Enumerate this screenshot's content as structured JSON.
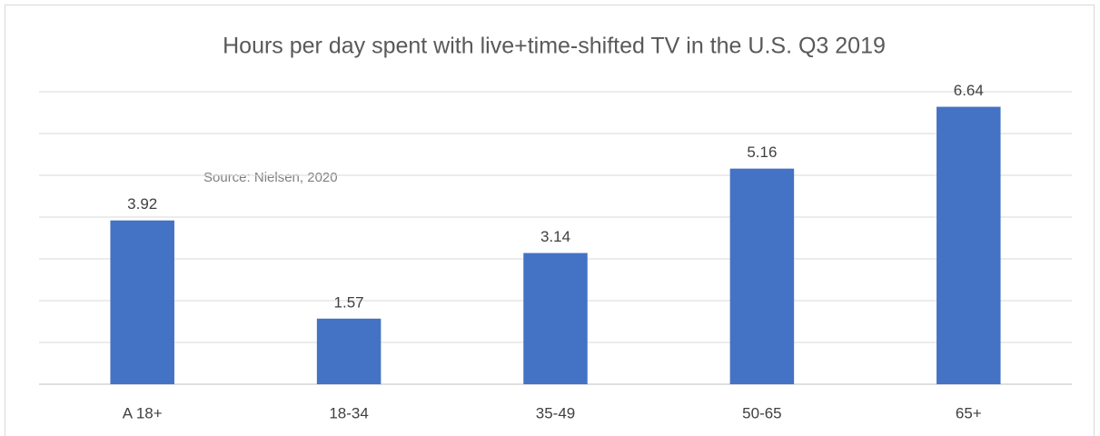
{
  "chart_data": {
    "type": "bar",
    "title": "Hours per day spent with live+time-shifted TV in the U.S. Q3 2019",
    "annotation": "Source: Nielsen, 2020",
    "categories": [
      "A 18+",
      "18-34",
      "35-49",
      "50-65",
      "65+"
    ],
    "values": [
      3.92,
      1.57,
      3.14,
      5.16,
      6.64
    ],
    "color": "#4472c4",
    "ylim": [
      0,
      7
    ],
    "yticks": [
      0,
      1,
      2,
      3,
      4,
      5,
      6,
      7
    ],
    "grid": true
  }
}
